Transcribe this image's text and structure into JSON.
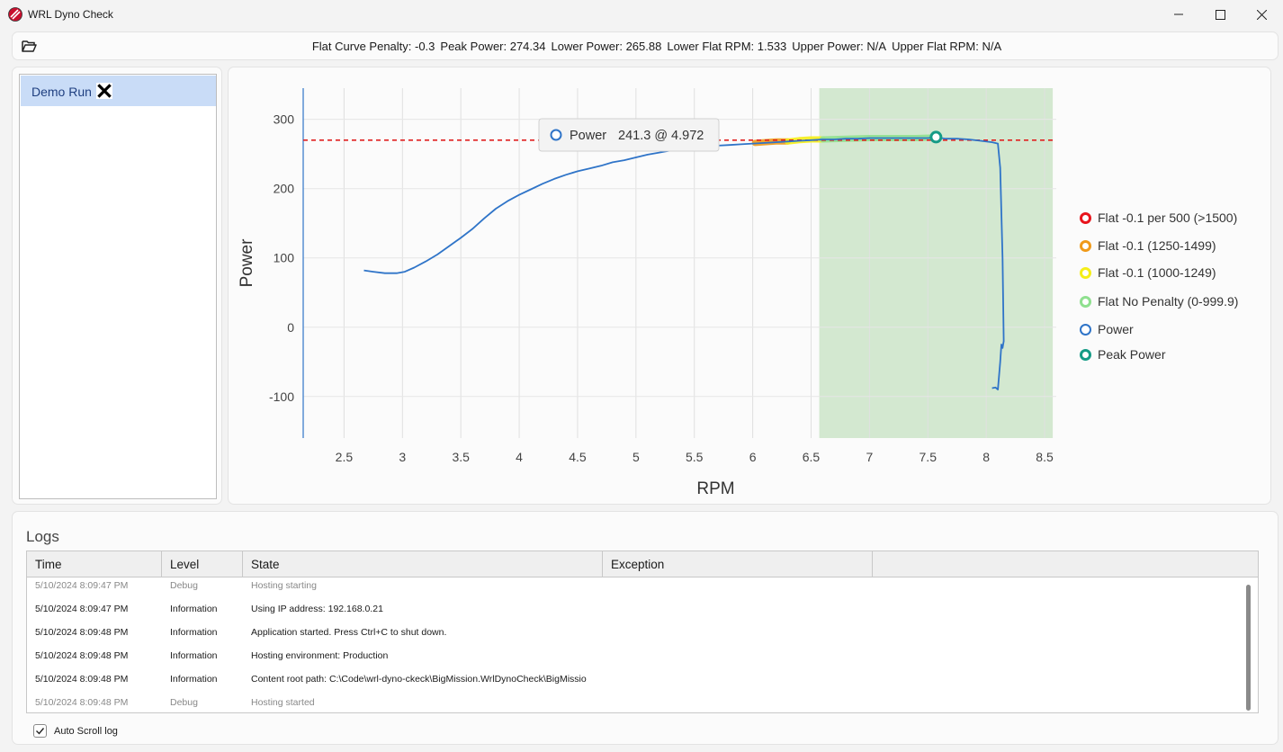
{
  "window": {
    "title": "WRL Dyno Check",
    "icon": "app-logo-icon",
    "controls": [
      "minimize-icon",
      "maximize-icon",
      "close-icon"
    ]
  },
  "summary": {
    "open_icon": "folder-open-icon",
    "flat_curve_penalty": "Flat Curve Penalty: -0.3",
    "peak_power": "Peak Power: 274.34",
    "lower_power": "Lower Power: 265.88",
    "lower_flat_rpm": "Lower Flat RPM: 1.533",
    "upper_power": "Upper Power: N/A",
    "upper_flat_rpm": "Upper Flat RPM: N/A"
  },
  "runs": [
    {
      "label": "Demo Run",
      "close_icon": "close-x-icon"
    }
  ],
  "chart_data": {
    "type": "line",
    "xlabel": "RPM",
    "ylabel": "Power",
    "xlim": [
      2.15,
      8.6
    ],
    "ylim": [
      -160,
      345
    ],
    "x_ticks": [
      "2.5",
      "3",
      "3.5",
      "4",
      "4.5",
      "5",
      "5.5",
      "6",
      "6.5",
      "7",
      "7.5",
      "8",
      "8.5"
    ],
    "y_ticks": [
      "300",
      "200",
      "100",
      "0",
      "-100"
    ],
    "threshold_line": {
      "y": 270,
      "color": "#e02020",
      "style": "dashed"
    },
    "flat_region": {
      "x_start": 6.57,
      "x_end": 8.57,
      "color": "#d3e8d0"
    },
    "series": [
      {
        "name": "Power",
        "color": "#2f74c8",
        "points": [
          [
            2.67,
            82
          ],
          [
            2.75,
            80
          ],
          [
            2.85,
            78
          ],
          [
            2.95,
            78
          ],
          [
            3.02,
            80
          ],
          [
            3.1,
            86
          ],
          [
            3.2,
            95
          ],
          [
            3.3,
            105
          ],
          [
            3.4,
            117
          ],
          [
            3.5,
            129
          ],
          [
            3.6,
            142
          ],
          [
            3.7,
            157
          ],
          [
            3.8,
            171
          ],
          [
            3.9,
            182
          ],
          [
            4.0,
            191
          ],
          [
            4.1,
            199
          ],
          [
            4.2,
            207
          ],
          [
            4.3,
            214
          ],
          [
            4.4,
            220
          ],
          [
            4.5,
            225
          ],
          [
            4.6,
            229
          ],
          [
            4.7,
            233
          ],
          [
            4.8,
            238
          ],
          [
            4.9,
            241
          ],
          [
            5.0,
            245
          ],
          [
            5.1,
            249
          ],
          [
            5.2,
            252
          ],
          [
            5.3,
            255
          ],
          [
            5.4,
            257
          ],
          [
            5.5,
            259
          ],
          [
            5.6,
            260
          ],
          [
            5.7,
            262
          ],
          [
            5.8,
            263
          ],
          [
            5.9,
            264
          ],
          [
            6.0,
            265
          ],
          [
            6.1,
            266
          ],
          [
            6.2,
            267
          ],
          [
            6.3,
            268
          ],
          [
            6.4,
            269
          ],
          [
            6.5,
            270
          ],
          [
            6.6,
            271
          ],
          [
            6.7,
            271
          ],
          [
            6.8,
            272
          ],
          [
            6.9,
            272
          ],
          [
            7.0,
            273
          ],
          [
            7.1,
            273
          ],
          [
            7.2,
            273
          ],
          [
            7.3,
            273
          ],
          [
            7.4,
            273
          ],
          [
            7.5,
            273
          ],
          [
            7.57,
            274.34
          ],
          [
            7.65,
            272
          ],
          [
            7.75,
            272
          ],
          [
            7.85,
            271
          ],
          [
            7.95,
            269
          ],
          [
            8.05,
            267
          ],
          [
            8.1,
            265
          ],
          [
            8.12,
            230
          ],
          [
            8.14,
            100
          ],
          [
            8.15,
            -20
          ],
          [
            8.14,
            -30
          ],
          [
            8.13,
            -25
          ],
          [
            8.12,
            -50
          ],
          [
            8.1,
            -90
          ],
          [
            8.08,
            -87
          ],
          [
            8.05,
            -88
          ]
        ]
      },
      {
        "name": "Flat -0.1 per 500 (>1500)",
        "color": "#e8141c",
        "points": []
      },
      {
        "name": "Flat -0.1 (1250-1499)",
        "color": "#f09a1a",
        "points": [
          [
            6.02,
            266
          ],
          [
            6.1,
            267
          ],
          [
            6.2,
            268
          ],
          [
            6.3,
            268
          ]
        ]
      },
      {
        "name": "Flat -0.1 (1000-1249)",
        "color": "#f5ee18",
        "points": [
          [
            6.3,
            268
          ],
          [
            6.4,
            270
          ],
          [
            6.5,
            271
          ],
          [
            6.6,
            271
          ]
        ]
      },
      {
        "name": "Flat No Penalty (0-999.9)",
        "color": "#8fe08f",
        "points": [
          [
            6.6,
            271
          ],
          [
            6.8,
            272
          ],
          [
            7.0,
            273
          ],
          [
            7.2,
            273
          ],
          [
            7.4,
            273
          ],
          [
            7.57,
            274
          ]
        ]
      },
      {
        "name": "Peak Power",
        "color": "#159b86",
        "points": [
          [
            7.57,
            274.34
          ]
        ]
      }
    ],
    "tooltip": {
      "series": "Power",
      "value": "241.3 @ 4.972"
    }
  },
  "legend": [
    {
      "label": "Flat -0.1 per 500 (>1500)",
      "color": "#e8141c"
    },
    {
      "label": "Flat -0.1 (1250-1499)",
      "color": "#f09a1a"
    },
    {
      "label": "Flat -0.1 (1000-1249)",
      "color": "#f5ee18"
    },
    {
      "label": "Flat No Penalty (0-999.9)",
      "color": "#8fe08f"
    },
    {
      "label": "Power",
      "color": "#2f74c8"
    },
    {
      "label": "Peak Power",
      "color": "#159b86"
    }
  ],
  "logs": {
    "title": "Logs",
    "columns": [
      "Time",
      "Level",
      "State",
      "Exception"
    ],
    "rows": [
      {
        "time": "5/10/2024 8:09:47 PM",
        "level": "Debug",
        "state": "Hosting starting",
        "exception": ""
      },
      {
        "time": "5/10/2024 8:09:47 PM",
        "level": "Information",
        "state": "Using IP address: 192.168.0.21",
        "exception": ""
      },
      {
        "time": "5/10/2024 8:09:48 PM",
        "level": "Information",
        "state": "Application started. Press Ctrl+C to shut down.",
        "exception": ""
      },
      {
        "time": "5/10/2024 8:09:48 PM",
        "level": "Information",
        "state": "Hosting environment: Production",
        "exception": ""
      },
      {
        "time": "5/10/2024 8:09:48 PM",
        "level": "Information",
        "state": "Content root path: C:\\Code\\wrl-dyno-ckeck\\BigMission.WrlDynoCheck\\BigMissio",
        "exception": ""
      },
      {
        "time": "5/10/2024 8:09:48 PM",
        "level": "Debug",
        "state": "Hosting started",
        "exception": ""
      }
    ],
    "auto_scroll_label": "Auto Scroll log",
    "auto_scroll_checked": true
  }
}
